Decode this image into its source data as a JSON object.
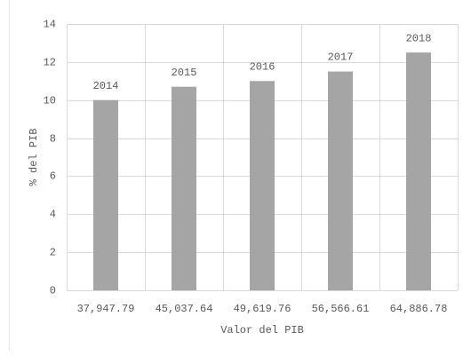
{
  "chart_data": {
    "type": "bar",
    "x_label": "Valor del PIB",
    "y_label": "% del PIB",
    "categories": [
      "37,947.79",
      "45,037.64",
      "49,619.76",
      "56,566.61",
      "64,886.78"
    ],
    "values": [
      10.0,
      10.7,
      11.0,
      11.5,
      12.5
    ],
    "bar_labels": [
      "2014",
      "2015",
      "2016",
      "2017",
      "2018"
    ],
    "color": "#a5a5a5",
    "ylim": [
      0,
      14
    ],
    "yticks": [
      0,
      2,
      4,
      6,
      8,
      10,
      12,
      14
    ],
    "grid": true
  }
}
